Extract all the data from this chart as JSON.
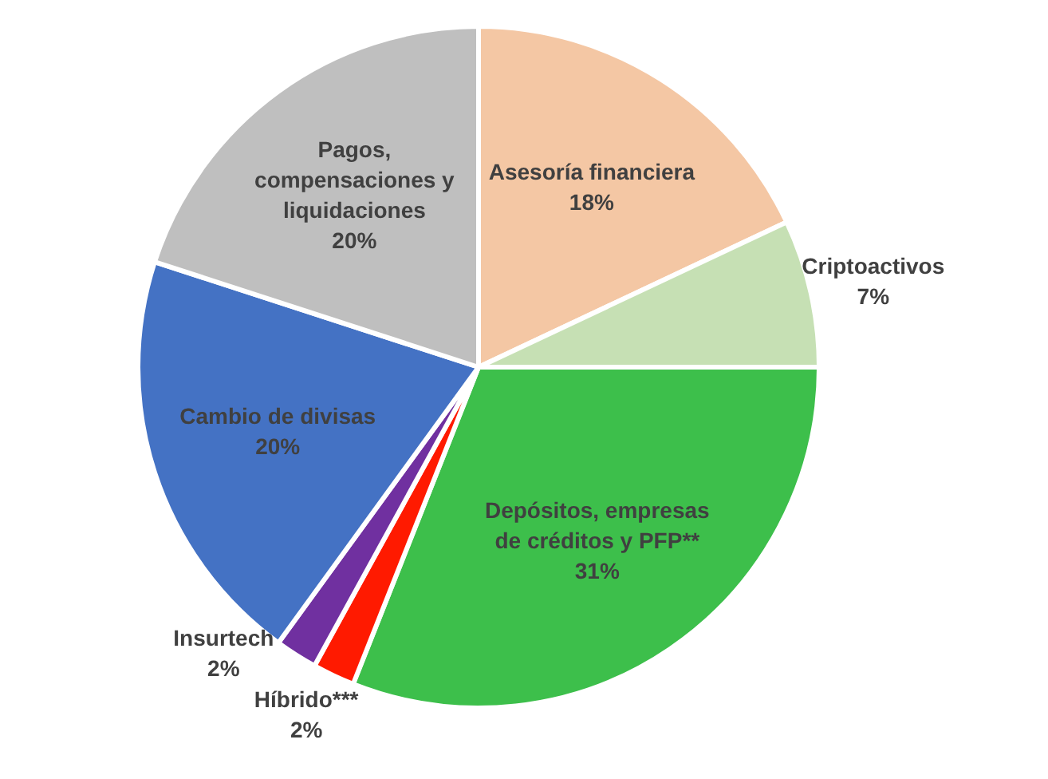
{
  "chart_data": {
    "type": "pie",
    "categories": [
      "Asesoría financiera",
      "Criptoactivos",
      "Depósitos, empresas de créditos y PFP**",
      "Híbrido***",
      "Insurtech",
      "Cambio de divisas",
      "Pagos, compensaciones y liquidaciones"
    ],
    "values": [
      18,
      7,
      31,
      2,
      2,
      20,
      20
    ],
    "value_labels": [
      "18%",
      "7%",
      "31%",
      "2%",
      "2%",
      "20%",
      "20%"
    ],
    "colors": [
      "#f4c7a4",
      "#c6e0b4",
      "#3dbf4b",
      "#ff1a00",
      "#7030a0",
      "#4472c4",
      "#bfbfbf"
    ]
  }
}
